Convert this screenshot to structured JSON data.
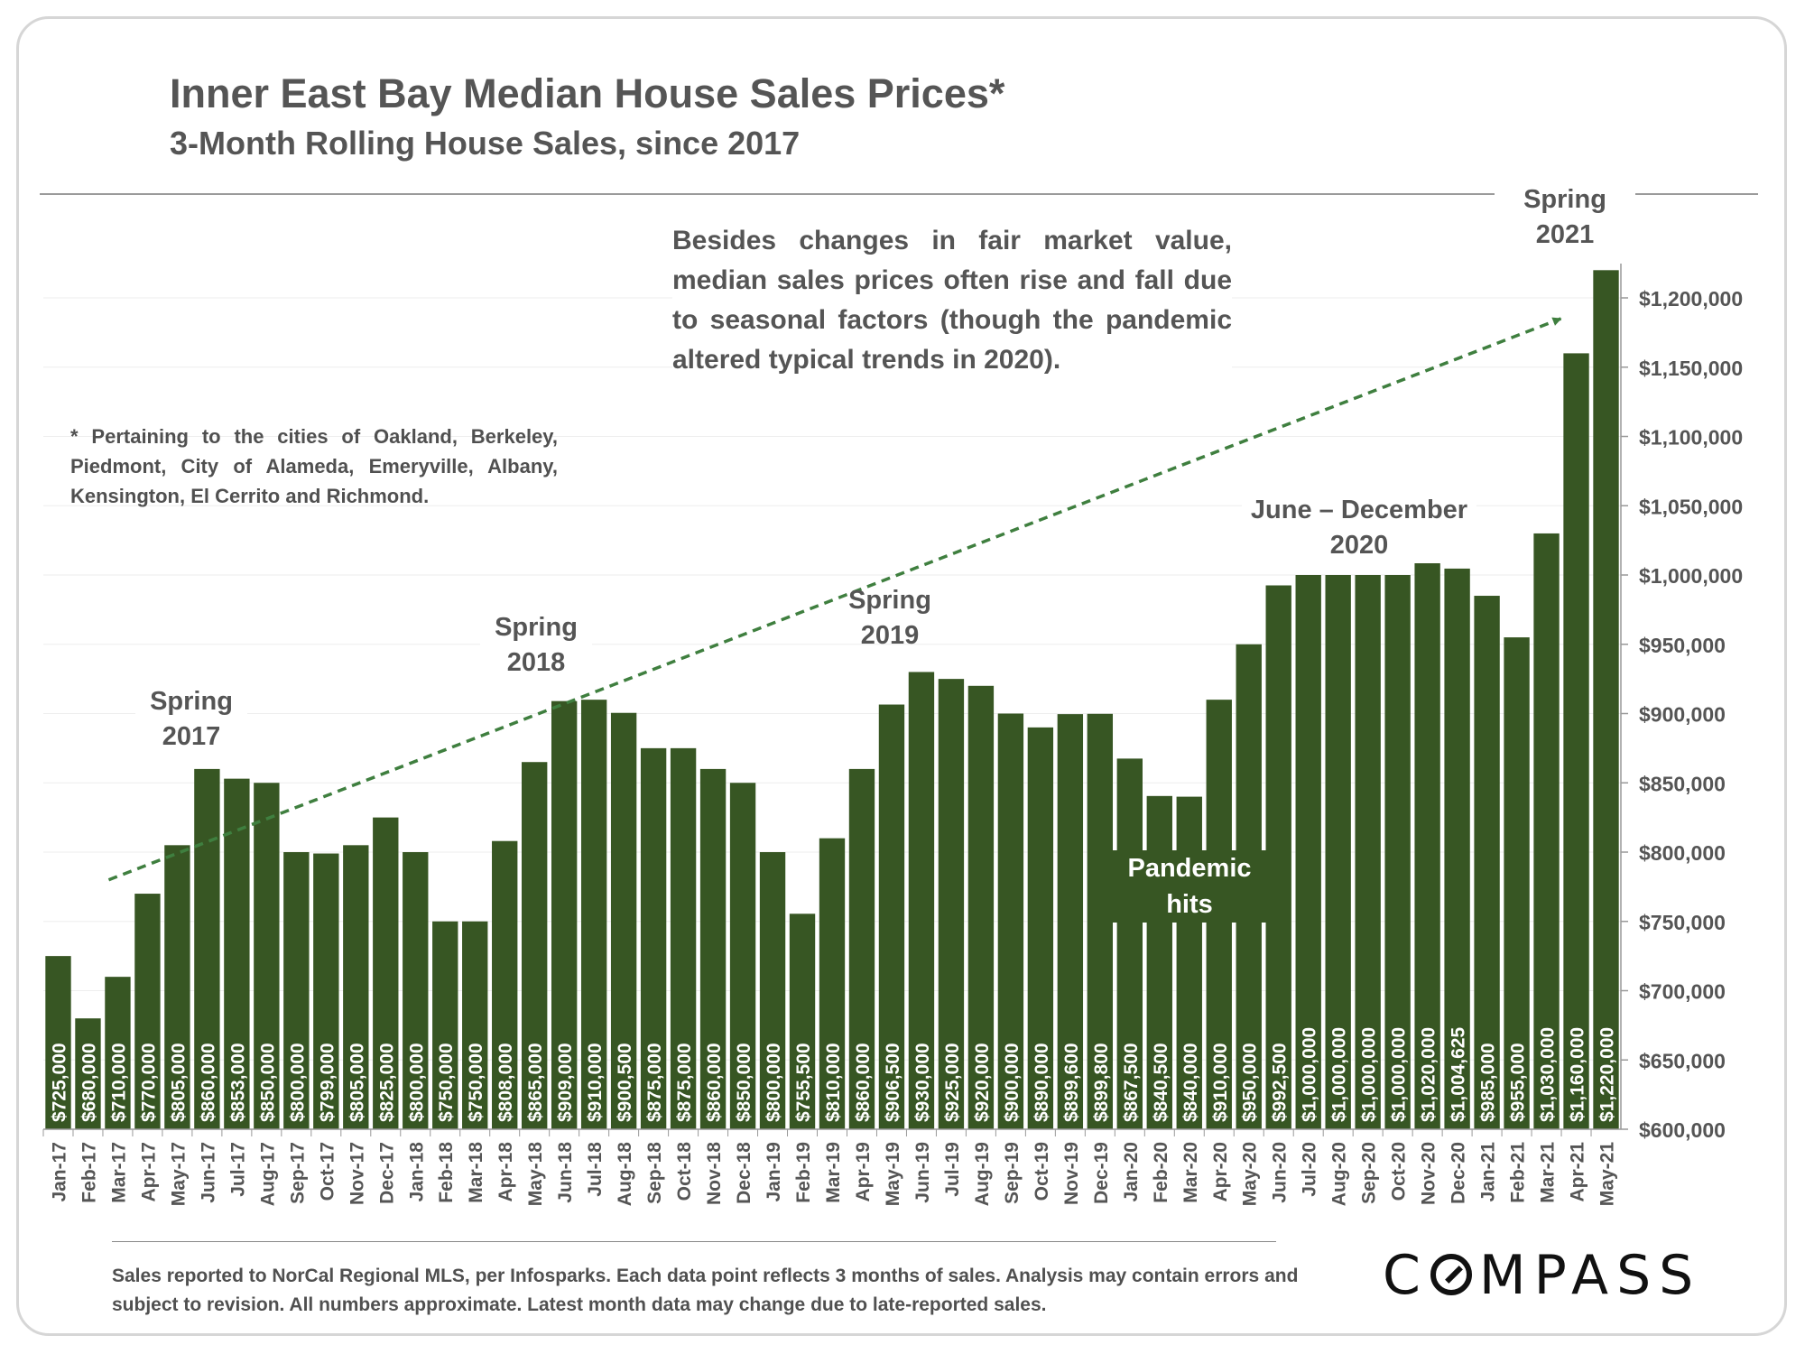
{
  "title": "Inner East Bay Median House Sales Prices*",
  "subtitle": "3-Month Rolling House Sales, since 2017",
  "commentary": "Besides changes in fair market value, median sales prices often rise and fall due to seasonal factors (though the pandemic altered typical trends in 2020).",
  "footnote": "* Pertaining to the cities of Oakland, Berkeley, Piedmont, City of Alameda, Emeryville, Albany, Kensington, El Cerrito and Richmond.",
  "source": "Sales reported to NorCal Regional MLS, per Infosparks. Each data point reflects 3 months of sales. Analysis may contain errors and subject to revision. All numbers approximate. Latest month data may change due to late-reported sales.",
  "logo": {
    "before": "C",
    "after": "MPASS"
  },
  "annotations": {
    "spring2017": {
      "line1": "Spring",
      "line2": "2017"
    },
    "spring2018": {
      "line1": "Spring",
      "line2": "2018"
    },
    "spring2019": {
      "line1": "Spring",
      "line2": "2019"
    },
    "spring2021": {
      "line1": "Spring",
      "line2": "2021"
    },
    "june_dec_2020": {
      "line1": "June – December",
      "line2": "2020"
    },
    "pandemic": {
      "line1": "Pandemic",
      "line2": "hits"
    }
  },
  "colors": {
    "bar": "#375623",
    "bar_label": "#ffffff",
    "trend": "#3f7f3f",
    "text": "#555555",
    "gridline": "#eeeeee"
  },
  "chart_data": {
    "type": "bar",
    "categories": [
      "Jan-17",
      "Feb-17",
      "Mar-17",
      "Apr-17",
      "May-17",
      "Jun-17",
      "Jul-17",
      "Aug-17",
      "Sep-17",
      "Oct-17",
      "Nov-17",
      "Dec-17",
      "Jan-18",
      "Feb-18",
      "Mar-18",
      "Apr-18",
      "May-18",
      "Jun-18",
      "Jul-18",
      "Aug-18",
      "Sep-18",
      "Oct-18",
      "Nov-18",
      "Dec-18",
      "Jan-19",
      "Feb-19",
      "Mar-19",
      "Apr-19",
      "May-19",
      "Jun-19",
      "Jul-19",
      "Aug-19",
      "Sep-19",
      "Oct-19",
      "Nov-19",
      "Dec-19",
      "Jan-20",
      "Feb-20",
      "Mar-20",
      "Apr-20",
      "May-20",
      "Jun-20",
      "Jul-20",
      "Aug-20",
      "Sep-20",
      "Oct-20",
      "Nov-20",
      "Dec-20",
      "Jan-21",
      "Feb-21",
      "Mar-21",
      "Apr-21",
      "May-21"
    ],
    "values": [
      725000,
      680000,
      710000,
      770000,
      805000,
      860000,
      853000,
      850000,
      800000,
      799000,
      805000,
      825000,
      800000,
      750000,
      750000,
      808000,
      865000,
      909000,
      910000,
      900500,
      875000,
      875000,
      860000,
      850000,
      800000,
      755500,
      810000,
      860000,
      906500,
      930000,
      925000,
      920000,
      900000,
      890000,
      899600,
      899800,
      867500,
      840500,
      840000,
      910000,
      950000,
      992500,
      1000000,
      1000000,
      1000000,
      1000000,
      1020000,
      1004625,
      985000,
      955000,
      1030000,
      1160000,
      1220000
    ],
    "labels": [
      "$725,000",
      "$680,000",
      "$710,000",
      "$770,000",
      "$805,000",
      "$860,000",
      "$853,000",
      "$850,000",
      "$800,000",
      "$799,000",
      "$805,000",
      "$825,000",
      "$800,000",
      "$750,000",
      "$750,000",
      "$808,000",
      "$865,000",
      "$909,000",
      "$910,000",
      "$900,500",
      "$875,000",
      "$875,000",
      "$860,000",
      "$850,000",
      "$800,000",
      "$755,500",
      "$810,000",
      "$860,000",
      "$906,500",
      "$930,000",
      "$925,000",
      "$920,000",
      "$900,000",
      "$890,000",
      "$899,600",
      "$899,800",
      "$867,500",
      "$840,500",
      "$840,000",
      "$910,000",
      "$950,000",
      "$992,500",
      "$1,000,000",
      "$1,000,000",
      "$1,000,000",
      "$1,000,000",
      "$1,020,000",
      "$1,004,625",
      "$985,000",
      "$955,000",
      "$1,030,000",
      "$1,160,000",
      "$1,220,000"
    ],
    "ylim": [
      600000,
      1200000
    ],
    "yticks": [
      600000,
      650000,
      700000,
      750000,
      800000,
      850000,
      900000,
      950000,
      1000000,
      1050000,
      1100000,
      1150000,
      1200000
    ],
    "ytick_labels": [
      "$600,000",
      "$650,000",
      "$700,000",
      "$750,000",
      "$800,000",
      "$850,000",
      "$900,000",
      "$950,000",
      "$1,000,000",
      "$1,050,000",
      "$1,100,000",
      "$1,150,000",
      "$1,200,000"
    ],
    "y_axis_side": "right",
    "grid": true,
    "trend_line": {
      "style": "dashed-arrow",
      "from": {
        "x": "Mar-17",
        "y": 780000
      },
      "to": {
        "x": "May-21",
        "y": 1185000
      }
    }
  }
}
